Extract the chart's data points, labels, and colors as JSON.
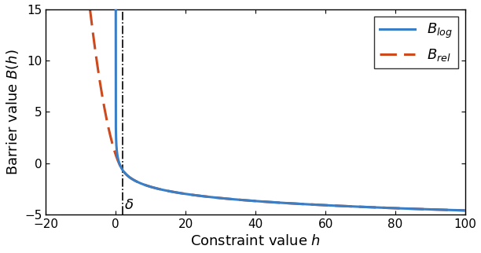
{
  "xlim": [
    -20,
    100
  ],
  "ylim": [
    -5,
    15
  ],
  "xticks": [
    -20,
    0,
    20,
    40,
    60,
    80,
    100
  ],
  "yticks": [
    -5,
    0,
    5,
    10,
    15
  ],
  "xlabel": "Constraint value $h$",
  "ylabel": "Barrier value $B(h)$",
  "delta": 2.0,
  "log_color": "#3a7ec6",
  "rel_color": "#cc4a1e",
  "log_linewidth": 2.2,
  "rel_linewidth": 2.2,
  "legend_labels": [
    "$B_{log}$",
    "$B_{rel}$"
  ],
  "delta_label": "$\\delta$",
  "figsize": [
    6.12,
    3.22
  ],
  "dpi": 100
}
